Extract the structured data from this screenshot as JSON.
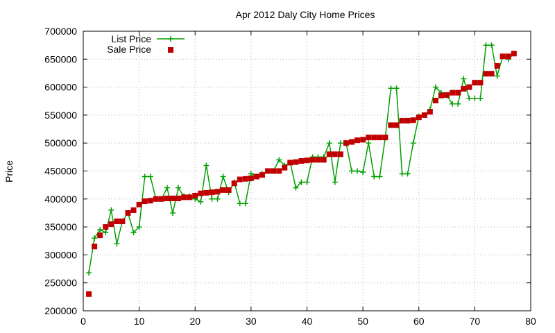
{
  "chart_data": {
    "type": "line",
    "title": "Apr 2012 Daly City Home Prices",
    "xlabel": "",
    "ylabel": "Price",
    "xlim": [
      0,
      80
    ],
    "ylim": [
      200000,
      700000
    ],
    "xticks": [
      0,
      10,
      20,
      30,
      40,
      50,
      60,
      70,
      80
    ],
    "yticks": [
      200000,
      250000,
      300000,
      350000,
      400000,
      450000,
      500000,
      550000,
      600000,
      650000,
      700000
    ],
    "grid": true,
    "legend_position": "top-left",
    "series": [
      {
        "name": "List Price",
        "color": "#00a000",
        "marker": "plus",
        "x": [
          1,
          2,
          3,
          4,
          5,
          6,
          7,
          8,
          9,
          10,
          11,
          12,
          13,
          14,
          15,
          16,
          17,
          18,
          19,
          20,
          21,
          22,
          23,
          24,
          25,
          26,
          27,
          28,
          29,
          30,
          31,
          32,
          33,
          34,
          35,
          36,
          37,
          38,
          39,
          40,
          41,
          42,
          43,
          44,
          45,
          46,
          47,
          48,
          49,
          50,
          51,
          52,
          53,
          54,
          55,
          56,
          57,
          58,
          59,
          60,
          61,
          62,
          63,
          64,
          65,
          66,
          67,
          68,
          69,
          70,
          71,
          72,
          73,
          74,
          75,
          76,
          77
        ],
        "values": [
          268000,
          330000,
          345000,
          340000,
          380000,
          320000,
          360000,
          375000,
          340000,
          350000,
          440000,
          440000,
          400000,
          400000,
          420000,
          375000,
          420000,
          405000,
          405000,
          400000,
          395000,
          460000,
          400000,
          400000,
          440000,
          412000,
          430000,
          392000,
          392000,
          445000,
          440000,
          445000,
          450000,
          450000,
          470000,
          460000,
          465000,
          420000,
          430000,
          430000,
          475000,
          475000,
          475000,
          500000,
          430000,
          500000,
          500000,
          450000,
          450000,
          448000,
          500000,
          440000,
          440000,
          510000,
          598000,
          598000,
          445000,
          445000,
          500000,
          548000,
          550000,
          560000,
          600000,
          590000,
          585000,
          570000,
          570000,
          615000,
          580000,
          580000,
          580000,
          675000,
          675000,
          620000,
          655000,
          650000,
          660000
        ]
      },
      {
        "name": "Sale Price",
        "color": "#c00000",
        "marker": "square",
        "x": [
          1,
          2,
          3,
          4,
          5,
          6,
          7,
          8,
          9,
          10,
          11,
          12,
          13,
          14,
          15,
          16,
          17,
          18,
          19,
          20,
          21,
          22,
          23,
          24,
          25,
          26,
          27,
          28,
          29,
          30,
          31,
          32,
          33,
          34,
          35,
          36,
          37,
          38,
          39,
          40,
          41,
          42,
          43,
          44,
          45,
          46,
          47,
          48,
          49,
          50,
          51,
          52,
          53,
          54,
          55,
          56,
          57,
          58,
          59,
          60,
          61,
          62,
          63,
          64,
          65,
          66,
          67,
          68,
          69,
          70,
          71,
          72,
          73,
          74,
          75,
          76,
          77
        ],
        "values": [
          230000,
          315000,
          335000,
          350000,
          355000,
          360000,
          360000,
          375000,
          380000,
          390000,
          396000,
          397000,
          400000,
          400000,
          401000,
          401000,
          401000,
          403000,
          403000,
          406000,
          410000,
          411000,
          412000,
          413000,
          416000,
          416000,
          428000,
          435000,
          436000,
          437000,
          440000,
          443000,
          450000,
          450000,
          450000,
          456000,
          465000,
          466000,
          468000,
          469000,
          470000,
          470000,
          470000,
          480000,
          480000,
          480000,
          500000,
          502000,
          505000,
          506000,
          510000,
          510000,
          510000,
          510000,
          532000,
          532000,
          540000,
          540000,
          541000,
          546000,
          550000,
          556000,
          576000,
          585000,
          586000,
          590000,
          590000,
          597000,
          600000,
          608000,
          608000,
          624000,
          624000,
          638000,
          655000,
          655000,
          660000
        ]
      }
    ]
  }
}
